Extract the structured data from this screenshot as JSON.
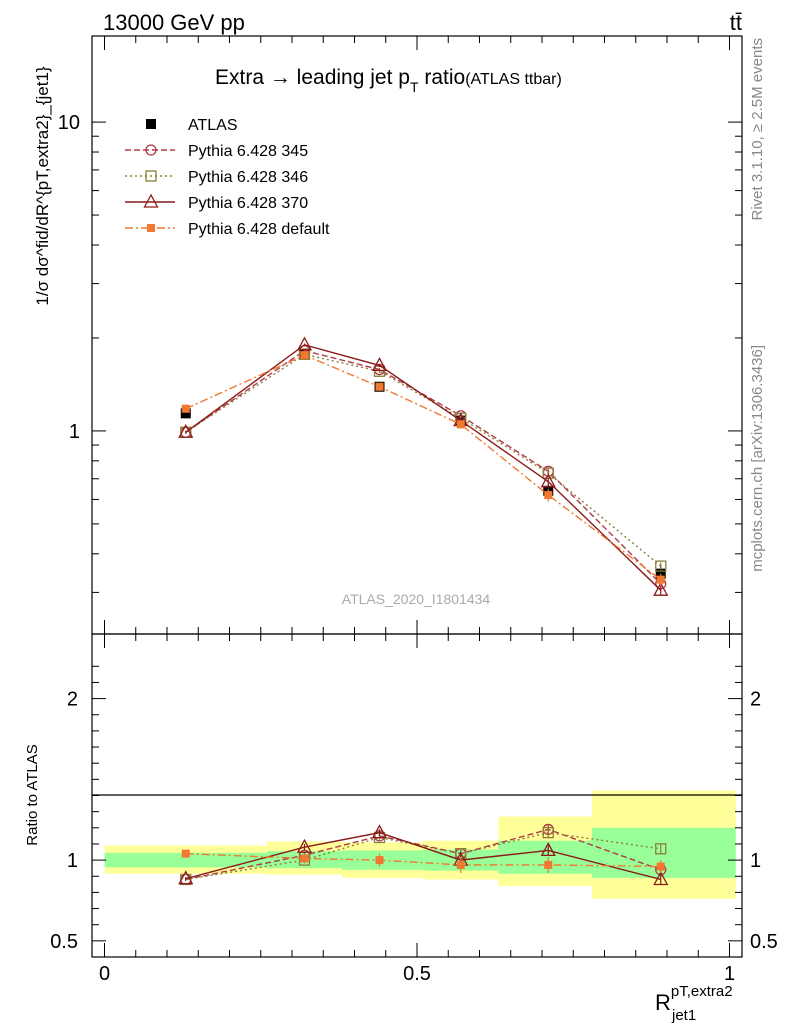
{
  "header": {
    "left": "13000 GeV pp",
    "right": "tt̄"
  },
  "side_labels": {
    "rivet": "Rivet 3.1.10, ≥ 2.5M events",
    "mcplots": "mcplots.cern.ch [arXiv:1306.3436]"
  },
  "chart_data": [
    {
      "type": "line",
      "panel": "main",
      "title": "Extra → leading jet p_T ratio (ATLAS ttbar)",
      "title_main": "Extra → leading jet p",
      "title_sub": "T",
      "title_rest": " ratio",
      "title_note": "(ATLAS ttbar)",
      "watermark": "ATLAS_2020_I1801434",
      "ylabel": "1/σ dσ^fid/dR^{pT,extra2}_{jet1}",
      "yscale": "log",
      "ylim": [
        0.22,
        19
      ],
      "xlim": [
        -0.02,
        1.02
      ],
      "ytick_labels": [
        "1",
        "10"
      ],
      "ytick_values": [
        1,
        10
      ],
      "legend_position": "top-left",
      "x": [
        0.13,
        0.32,
        0.44,
        0.57,
        0.71,
        0.89
      ],
      "series": [
        {
          "name": "ATLAS",
          "color": "#000000",
          "marker": "filled-square",
          "line": "none",
          "values": [
            1.14,
            1.78,
            1.39,
            1.08,
            0.64,
            0.345
          ],
          "errors": [
            0.02,
            0.03,
            0.03,
            0.03,
            0.03,
            0.02
          ]
        },
        {
          "name": "Pythia 6.428 345",
          "color": "#b03a48",
          "marker": "open-circle",
          "line": "dashed",
          "values": [
            0.99,
            1.82,
            1.58,
            1.12,
            0.74,
            0.32
          ],
          "errors": [
            0.01,
            0.02,
            0.02,
            0.02,
            0.02,
            0.01
          ]
        },
        {
          "name": "Pythia 6.428 346",
          "color": "#8b7d3a",
          "marker": "open-square",
          "line": "dotted",
          "values": [
            0.99,
            1.77,
            1.56,
            1.1,
            0.73,
            0.365
          ],
          "errors": [
            0.01,
            0.02,
            0.02,
            0.02,
            0.02,
            0.01
          ]
        },
        {
          "name": "Pythia 6.428 370",
          "color": "#8b1a1a",
          "marker": "open-triangle",
          "line": "solid",
          "values": [
            0.99,
            1.9,
            1.63,
            1.08,
            0.685,
            0.305
          ],
          "errors": [
            0.01,
            0.02,
            0.02,
            0.02,
            0.02,
            0.01
          ]
        },
        {
          "name": "Pythia 6.428 default",
          "color": "#f07830",
          "marker": "filled-small-square",
          "line": "dashdot",
          "values": [
            1.18,
            1.76,
            1.39,
            1.05,
            0.62,
            0.33
          ],
          "errors": [
            0.02,
            0.02,
            0.03,
            0.03,
            0.03,
            0.015
          ]
        }
      ]
    },
    {
      "type": "line",
      "panel": "ratio",
      "ylabel": "Ratio to ATLAS",
      "xlabel": "R^{pT,extra2}_{jet1}",
      "xlabel_main": "R",
      "xlabel_sup": "pT,extra2",
      "xlabel_sub": "jet1",
      "ylim": [
        0.4,
        2.4
      ],
      "xlim": [
        -0.02,
        1.02
      ],
      "ytick_labels": [
        "0.5",
        "1",
        "2"
      ],
      "ytick_values": [
        0.5,
        1,
        2
      ],
      "xtick_labels": [
        "0",
        "0.5",
        "1"
      ],
      "xtick_values": [
        0,
        0.5,
        1
      ],
      "bands": {
        "edges": [
          0.0,
          0.26,
          0.38,
          0.51,
          0.63,
          0.78,
          1.01
        ],
        "green_low": [
          0.955,
          0.95,
          0.94,
          0.935,
          0.915,
          0.89
        ],
        "green_high": [
          1.045,
          1.055,
          1.06,
          1.065,
          1.12,
          1.2
        ],
        "yellow_low": [
          0.915,
          0.91,
          0.89,
          0.88,
          0.84,
          0.76
        ],
        "yellow_high": [
          1.09,
          1.115,
          1.11,
          1.12,
          1.27,
          1.43
        ],
        "green_color": "#99ff99",
        "yellow_color": "#ffff99"
      },
      "x": [
        0.13,
        0.32,
        0.44,
        0.57,
        0.71,
        0.89
      ],
      "series": [
        {
          "name": "Pythia 6.428 345",
          "values": [
            0.88,
            1.03,
            1.15,
            1.04,
            1.19,
            0.94
          ],
          "errors": [
            0.01,
            0.02,
            0.02,
            0.03,
            0.03,
            0.03
          ]
        },
        {
          "name": "Pythia 6.428 346",
          "values": [
            0.88,
            1.0,
            1.14,
            1.04,
            1.17,
            1.07
          ],
          "errors": [
            0.01,
            0.02,
            0.02,
            0.03,
            0.03,
            0.03
          ]
        },
        {
          "name": "Pythia 6.428 370",
          "values": [
            0.885,
            1.08,
            1.17,
            1.0,
            1.06,
            0.88
          ],
          "errors": [
            0.01,
            0.02,
            0.02,
            0.03,
            0.03,
            0.03
          ]
        },
        {
          "name": "Pythia 6.428 default",
          "values": [
            1.04,
            1.01,
            1.0,
            0.97,
            0.97,
            0.96
          ],
          "errors": [
            0.02,
            0.03,
            0.04,
            0.05,
            0.05,
            0.04
          ]
        }
      ]
    }
  ]
}
